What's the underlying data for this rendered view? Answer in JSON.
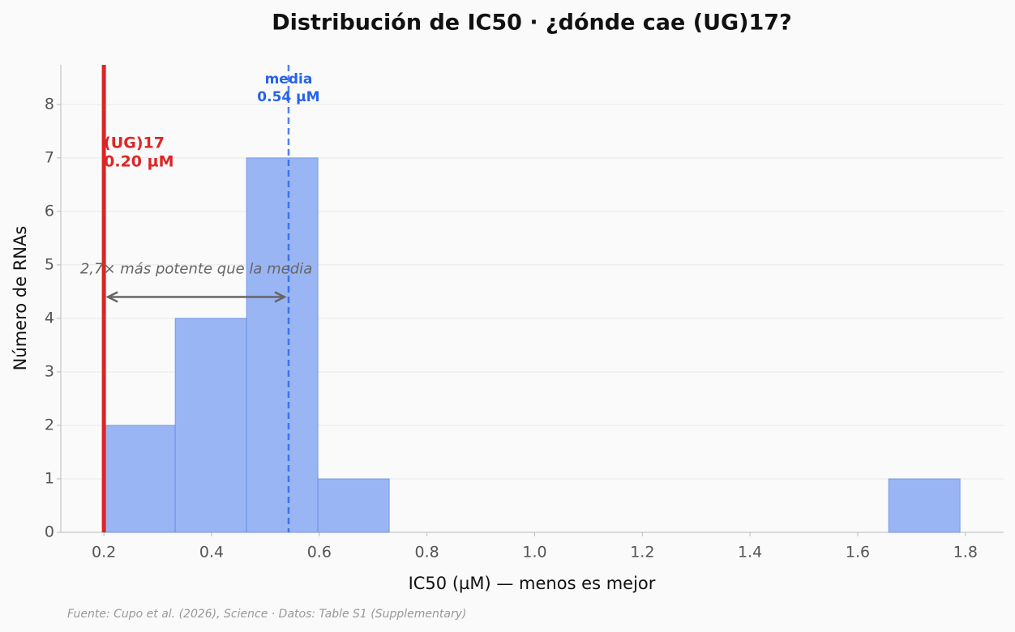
{
  "chart_data": {
    "type": "histogram",
    "title": "Distribución de IC50 · ¿dónde cae (UG)17?",
    "x_label": "IC50 (µM) — menos es mejor",
    "y_label": "Número de RNAs",
    "footnote": "Fuente: Cupo et al. (2026), Science · Datos: Table S1 (Supplementary)",
    "bins": [
      0.2,
      0.3325,
      0.465,
      0.5975,
      0.73,
      0.8625,
      0.995,
      1.1275,
      1.26,
      1.3925,
      1.525,
      1.6575,
      1.79
    ],
    "values": [
      2,
      4,
      7,
      1,
      0,
      0,
      0,
      0,
      0,
      0,
      0,
      1
    ],
    "color": "#9ab5f3",
    "edge_color": "#5b86e5",
    "xlim": [
      0.12,
      1.871
    ],
    "ylim": [
      0,
      8.74
    ],
    "xticks": [
      0.2,
      0.4,
      0.6,
      0.8,
      {
        "value": 1,
        "label": "1.0"
      },
      1.2,
      1.4,
      1.6,
      1.8
    ],
    "yticks": [
      0,
      1,
      2,
      3,
      4,
      5,
      6,
      7,
      8
    ],
    "grid": true,
    "markers": [
      {
        "label": "(UG)17",
        "value": 0.2,
        "value_label": "0.20 µM",
        "color": "#dc2626",
        "style": "solid"
      },
      {
        "label": "media",
        "value": 0.543,
        "value_label": "0.54 µM",
        "color": "#2563eb",
        "style": "dashed"
      }
    ],
    "arrow": {
      "text": "2,7× más potente que la media",
      "y": 4.4,
      "color": "#666666"
    }
  }
}
